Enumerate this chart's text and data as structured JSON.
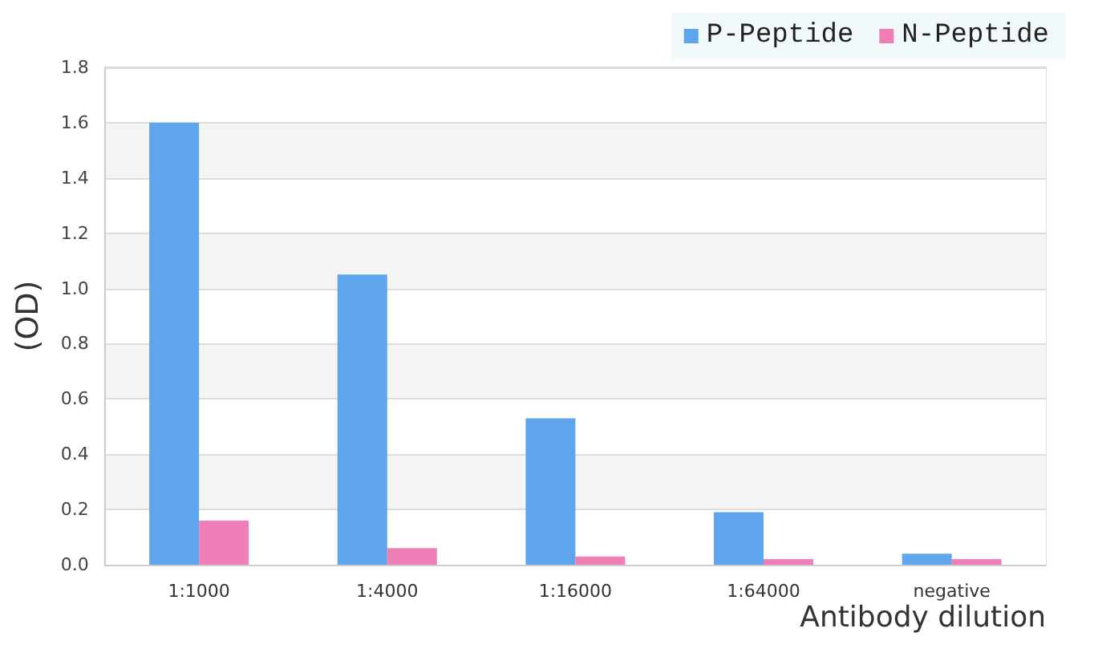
{
  "chart_data": {
    "type": "bar",
    "xlabel": "Antibody dilution",
    "ylabel": "(OD)",
    "categories": [
      "1:1000",
      "1:4000",
      "1:16000",
      "1:64000",
      "negative"
    ],
    "series": [
      {
        "name": "P-Peptide",
        "color": "#5ea5ee",
        "values": [
          1.6,
          1.05,
          0.53,
          0.19,
          0.04
        ]
      },
      {
        "name": "N-Peptide",
        "color": "#f07fb8",
        "values": [
          0.16,
          0.06,
          0.03,
          0.02,
          0.02
        ]
      }
    ],
    "ylim": [
      0,
      1.8
    ],
    "yticks": [
      {
        "value": 0,
        "label": "0.0"
      },
      0.2,
      0.4,
      0.6,
      0.8,
      {
        "value": 1,
        "label": "1.0"
      },
      1.2,
      1.4,
      1.6,
      1.8
    ],
    "grid": "y",
    "legend": "top right"
  }
}
